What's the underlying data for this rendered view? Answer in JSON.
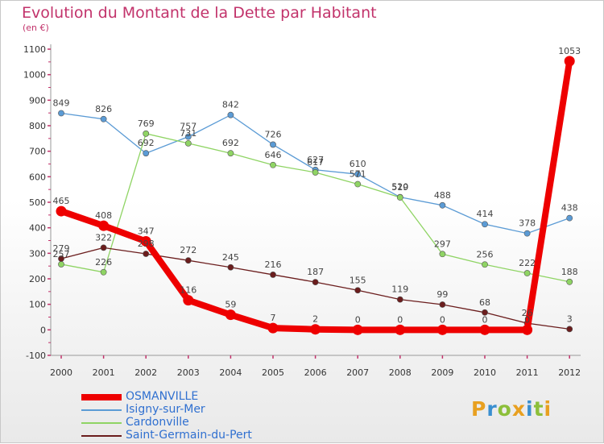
{
  "header": {
    "title": "Evolution du Montant de la Dette par Habitant",
    "unit": "(en €)"
  },
  "brand": {
    "text": "Proxiti",
    "colors": [
      "#e8a020",
      "#3a8fd0",
      "#8cbf3a",
      "#e8a020",
      "#3a8fd0",
      "#8cbf3a",
      "#e8a020"
    ]
  },
  "chart_data": {
    "type": "line",
    "title": "Evolution du Montant de la Dette par Habitant",
    "ylabel": "(en €)",
    "xlabel": "",
    "x": [
      "2000",
      "2001",
      "2002",
      "2003",
      "2004",
      "2005",
      "2006",
      "2007",
      "2008",
      "2009",
      "2010",
      "2011",
      "2012"
    ],
    "ylim": [
      -100,
      1100
    ],
    "yticks": [
      -100,
      0,
      100,
      200,
      300,
      400,
      500,
      600,
      700,
      800,
      900,
      1000,
      1100
    ],
    "grid": false,
    "legend": "bottom-left",
    "series": [
      {
        "name": "OSMANVILLE",
        "color": "#ee0000",
        "emphasis": true,
        "values": [
          465,
          408,
          347,
          116,
          59,
          7,
          2,
          0,
          0,
          0,
          0,
          0,
          1053
        ],
        "labels": [
          "465",
          "408",
          "347",
          "116",
          "59",
          "7",
          "2",
          "0",
          "0",
          "0",
          "0",
          "0",
          "1053"
        ]
      },
      {
        "name": "Isigny-sur-Mer",
        "color": "#5b9bd5",
        "values": [
          849,
          826,
          692,
          757,
          842,
          726,
          627,
          610,
          520,
          488,
          414,
          378,
          438
        ],
        "labels": [
          "849",
          "826",
          "692",
          "757",
          "842",
          "726",
          "627",
          "610",
          "520",
          "488",
          "414",
          "378",
          "438"
        ]
      },
      {
        "name": "Cardonville",
        "color": "#8fd464",
        "values": [
          257,
          226,
          769,
          731,
          692,
          646,
          617,
          571,
          519,
          297,
          256,
          222,
          188
        ],
        "labels": [
          "257",
          "226",
          "769",
          "731",
          "692",
          "646",
          "617",
          "571",
          "519",
          "297",
          "256",
          "222",
          "188"
        ]
      },
      {
        "name": "Saint-Germain-du-Pert",
        "color": "#6b1d1d",
        "values": [
          279,
          322,
          298,
          272,
          245,
          216,
          187,
          155,
          119,
          99,
          68,
          26,
          3
        ],
        "labels": [
          "279",
          "322",
          "298",
          "272",
          "245",
          "216",
          "187",
          "155",
          "119",
          "99",
          "68",
          "26",
          "3"
        ]
      }
    ]
  }
}
